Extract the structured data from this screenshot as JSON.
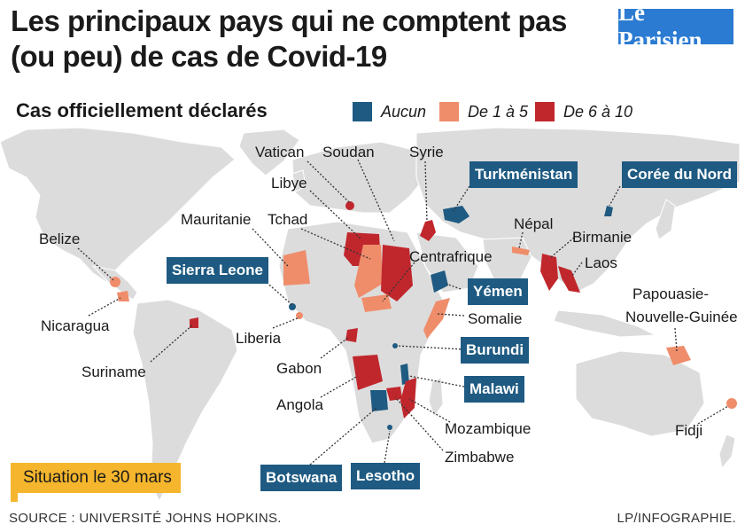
{
  "title_line1": "Les principaux pays qui ne comptent pas",
  "title_line2": "(ou peu) de cas de Covid-19",
  "logo_text": "Le Parisien",
  "legend": {
    "title": "Cas officiellement déclarés",
    "items": [
      {
        "label": "Aucun",
        "color": "#1e5a82"
      },
      {
        "label": "De 1 à 5",
        "color": "#ef8d6b"
      },
      {
        "label": "De 6 à 10",
        "color": "#c0272d"
      }
    ]
  },
  "countries": {
    "vatican": "Vatican",
    "soudan": "Soudan",
    "syrie": "Syrie",
    "turkmenistan": "Turkménistan",
    "coree": "Corée du Nord",
    "libye": "Libye",
    "mauritanie": "Mauritanie",
    "tchad": "Tchad",
    "nepal": "Népal",
    "birmanie": "Birmanie",
    "laos": "Laos",
    "belize": "Belize",
    "sierra_leone": "Sierra Leone",
    "centrafrique": "Centrafrique",
    "yemen": "Yémen",
    "somalie": "Somalie",
    "papouasie1": "Papouasie-",
    "papouasie2": "Nouvelle-Guinée",
    "nicaragua": "Nicaragua",
    "liberia": "Liberia",
    "burundi": "Burundi",
    "suriname": "Suriname",
    "gabon": "Gabon",
    "malawi": "Malawi",
    "angola": "Angola",
    "mozambique": "Mozambique",
    "fidji": "Fidji",
    "zimbabwe": "Zimbabwe",
    "botswana": "Botswana",
    "lesotho": "Lesotho"
  },
  "date_note": "Situation le 30 mars",
  "source": "SOURCE : UNIVERSITÉ JOHNS HOPKINS.",
  "credit": "LP/INFOGRAPHIE."
}
